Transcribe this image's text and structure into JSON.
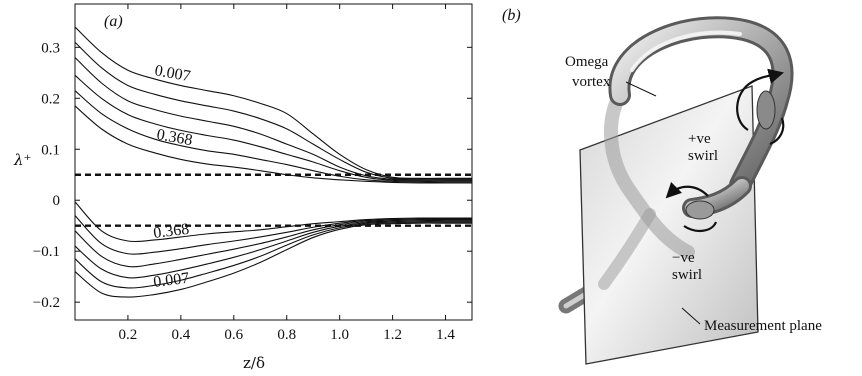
{
  "figure": {
    "panel_a_label": "(a)",
    "panel_b_label": "(b)"
  },
  "chart_data": {
    "type": "line",
    "xlabel": "z/δ",
    "ylabel": "λ⁺",
    "xlim": [
      0,
      1.5
    ],
    "ylim": [
      -0.235,
      0.385
    ],
    "xticks": [
      0.2,
      0.4,
      0.6,
      0.8,
      1.0,
      1.2,
      1.4
    ],
    "xtick_labels": [
      "0.2",
      "0.4",
      "0.6",
      "0.8",
      "1.0",
      "1.2",
      "1.4"
    ],
    "yticks": [
      -0.2,
      -0.1,
      0,
      0.1,
      0.2,
      0.3
    ],
    "ytick_labels": [
      "−0.2",
      "−0.1",
      "0",
      "0.1",
      "0.2",
      "0.3"
    ],
    "grid": false,
    "curve_labels": [
      "0.007",
      "0.368",
      "0.368",
      "0.007"
    ],
    "thresholds": [
      0.05,
      -0.05
    ],
    "x": [
      0.0,
      0.1,
      0.2,
      0.3,
      0.4,
      0.5,
      0.6,
      0.7,
      0.8,
      0.9,
      1.0,
      1.1,
      1.2,
      1.3,
      1.4,
      1.5
    ],
    "series": [
      {
        "values": [
          0.34,
          0.29,
          0.255,
          0.238,
          0.225,
          0.215,
          0.205,
          0.19,
          0.17,
          0.13,
          0.09,
          0.06,
          0.045,
          0.043,
          0.043,
          0.043
        ]
      },
      {
        "values": [
          0.31,
          0.26,
          0.225,
          0.208,
          0.195,
          0.185,
          0.175,
          0.16,
          0.14,
          0.11,
          0.08,
          0.055,
          0.043,
          0.042,
          0.042,
          0.042
        ]
      },
      {
        "values": [
          0.28,
          0.23,
          0.195,
          0.178,
          0.165,
          0.155,
          0.145,
          0.13,
          0.11,
          0.09,
          0.065,
          0.048,
          0.041,
          0.04,
          0.04,
          0.04
        ]
      },
      {
        "values": [
          0.245,
          0.2,
          0.168,
          0.15,
          0.137,
          0.127,
          0.118,
          0.105,
          0.09,
          0.075,
          0.058,
          0.045,
          0.039,
          0.038,
          0.038,
          0.038
        ]
      },
      {
        "values": [
          0.215,
          0.17,
          0.14,
          0.12,
          0.107,
          0.097,
          0.09,
          0.08,
          0.07,
          0.058,
          0.047,
          0.04,
          0.037,
          0.036,
          0.036,
          0.036
        ]
      },
      {
        "values": [
          0.185,
          0.14,
          0.11,
          0.093,
          0.08,
          0.071,
          0.065,
          0.058,
          0.05,
          0.044,
          0.04,
          0.037,
          0.035,
          0.034,
          0.034,
          0.034
        ]
      },
      {
        "values": [
          -0.003,
          -0.06,
          -0.08,
          -0.078,
          -0.072,
          -0.066,
          -0.062,
          -0.058,
          -0.052,
          -0.046,
          -0.042,
          -0.038,
          -0.036,
          -0.035,
          -0.035,
          -0.035
        ]
      },
      {
        "values": [
          -0.03,
          -0.085,
          -0.105,
          -0.102,
          -0.095,
          -0.087,
          -0.08,
          -0.072,
          -0.063,
          -0.053,
          -0.045,
          -0.04,
          -0.038,
          -0.037,
          -0.037,
          -0.037
        ]
      },
      {
        "values": [
          -0.06,
          -0.11,
          -0.13,
          -0.125,
          -0.116,
          -0.106,
          -0.096,
          -0.085,
          -0.072,
          -0.058,
          -0.048,
          -0.042,
          -0.04,
          -0.039,
          -0.039,
          -0.039
        ]
      },
      {
        "values": [
          -0.09,
          -0.135,
          -0.152,
          -0.147,
          -0.137,
          -0.125,
          -0.112,
          -0.097,
          -0.08,
          -0.063,
          -0.051,
          -0.044,
          -0.042,
          -0.041,
          -0.041,
          -0.041
        ]
      },
      {
        "values": [
          -0.115,
          -0.16,
          -0.172,
          -0.167,
          -0.157,
          -0.143,
          -0.128,
          -0.11,
          -0.088,
          -0.068,
          -0.054,
          -0.046,
          -0.044,
          -0.043,
          -0.043,
          -0.043
        ]
      },
      {
        "values": [
          -0.14,
          -0.182,
          -0.19,
          -0.185,
          -0.175,
          -0.16,
          -0.143,
          -0.122,
          -0.097,
          -0.073,
          -0.057,
          -0.048,
          -0.046,
          -0.045,
          -0.045,
          -0.045
        ]
      }
    ]
  },
  "diagram_b": {
    "labels": {
      "omega": "Omega",
      "vortex": "vortex",
      "pos_sign": "+ve",
      "pos_swirl": "swirl",
      "neg_sign": "−ve",
      "neg_swirl": "swirl",
      "plane": "Measurement plane"
    }
  }
}
